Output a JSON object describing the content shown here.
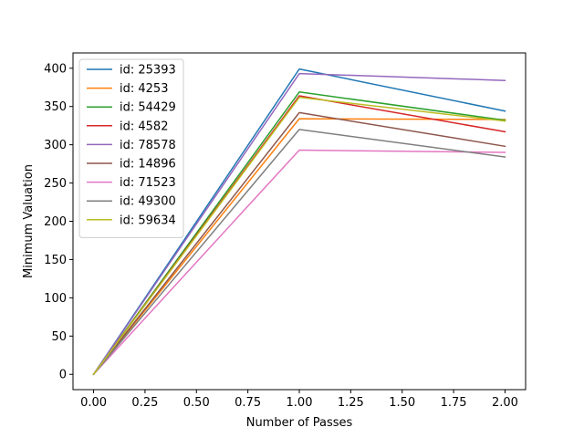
{
  "chart_data": {
    "type": "line",
    "title": "",
    "xlabel": "Number of Passes",
    "ylabel": "Minimum Valuation",
    "x": [
      0.0,
      1.0,
      2.0
    ],
    "xlim": [
      -0.1,
      2.1
    ],
    "ylim": [
      -20,
      420
    ],
    "xticks": [
      0.0,
      0.25,
      0.5,
      0.75,
      1.0,
      1.25,
      1.5,
      1.75,
      2.0
    ],
    "xtick_labels": [
      "0.00",
      "0.25",
      "0.50",
      "0.75",
      "1.00",
      "1.25",
      "1.50",
      "1.75",
      "2.00"
    ],
    "yticks": [
      0,
      50,
      100,
      150,
      200,
      250,
      300,
      350,
      400
    ],
    "ytick_labels": [
      "0",
      "50",
      "100",
      "150",
      "200",
      "250",
      "300",
      "350",
      "400"
    ],
    "grid": false,
    "legend_position": "upper-left",
    "series": [
      {
        "name": "id: 25393",
        "color": "#1f77b4",
        "values": [
          0,
          399,
          344
        ]
      },
      {
        "name": "id: 4253",
        "color": "#ff7f0e",
        "values": [
          0,
          334,
          333
        ]
      },
      {
        "name": "id: 54429",
        "color": "#2ca02c",
        "values": [
          0,
          369,
          332
        ]
      },
      {
        "name": "id: 4582",
        "color": "#d62728",
        "values": [
          0,
          364,
          317
        ]
      },
      {
        "name": "id: 78578",
        "color": "#9467bd",
        "values": [
          0,
          393,
          384
        ]
      },
      {
        "name": "id: 14896",
        "color": "#8c564b",
        "values": [
          0,
          342,
          298
        ]
      },
      {
        "name": "id: 71523",
        "color": "#e377c2",
        "values": [
          0,
          293,
          290
        ]
      },
      {
        "name": "id: 49300",
        "color": "#7f7f7f",
        "values": [
          0,
          320,
          284
        ]
      },
      {
        "name": "id: 59634",
        "color": "#bcbd22",
        "values": [
          0,
          362,
          331
        ]
      }
    ]
  }
}
